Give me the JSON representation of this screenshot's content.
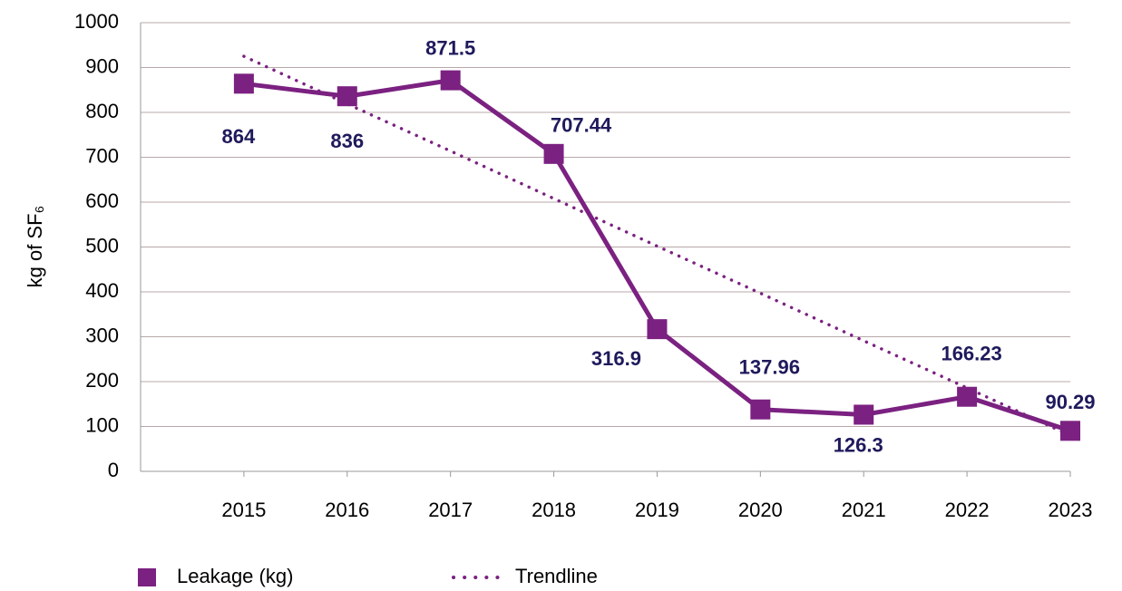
{
  "chart_data": {
    "type": "line",
    "y_label": "kg of SF₆",
    "categories": [
      "2015",
      "2016",
      "2017",
      "2018",
      "2019",
      "2020",
      "2021",
      "2022",
      "2023"
    ],
    "series": [
      {
        "name": "Leakage (kg)",
        "color": "#7b2181",
        "values": [
          864,
          836,
          871.5,
          707.44,
          316.9,
          137.96,
          126.3,
          166.23,
          90.29
        ]
      },
      {
        "name": "Trendline",
        "color": "#7b2181",
        "style": "dotted",
        "values": [
          925,
          819,
          714,
          608,
          502,
          397,
          291,
          186,
          80
        ]
      }
    ],
    "data_labels_series": 0,
    "ylim": [
      0,
      1000
    ],
    "yticks": [
      0,
      100,
      200,
      300,
      400,
      500,
      600,
      700,
      800,
      900,
      1000
    ],
    "grid": true,
    "legend": "bottom"
  }
}
